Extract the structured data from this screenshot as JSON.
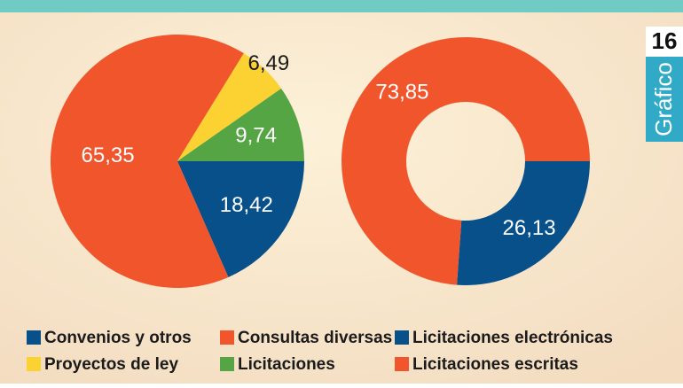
{
  "badge": {
    "number": "16",
    "label": "Gráfico"
  },
  "chart_data": [
    {
      "type": "pie",
      "categories": [
        "Convenios y otros",
        "Consultas diversas",
        "Proyectos de ley",
        "Licitaciones"
      ],
      "values": [
        18.42,
        65.35,
        6.49,
        9.74
      ],
      "value_labels": [
        "18,42",
        "65,35",
        "6,49",
        "9,74"
      ],
      "colors": [
        "#07508a",
        "#f0552c",
        "#fcd232",
        "#56a545"
      ]
    },
    {
      "type": "donut",
      "categories": [
        "Licitaciones electrónicas",
        "Licitaciones escritas"
      ],
      "values": [
        26.13,
        73.85
      ],
      "value_labels": [
        "26,13",
        "73,85"
      ],
      "colors": [
        "#07508a",
        "#f0552c"
      ]
    }
  ]
}
